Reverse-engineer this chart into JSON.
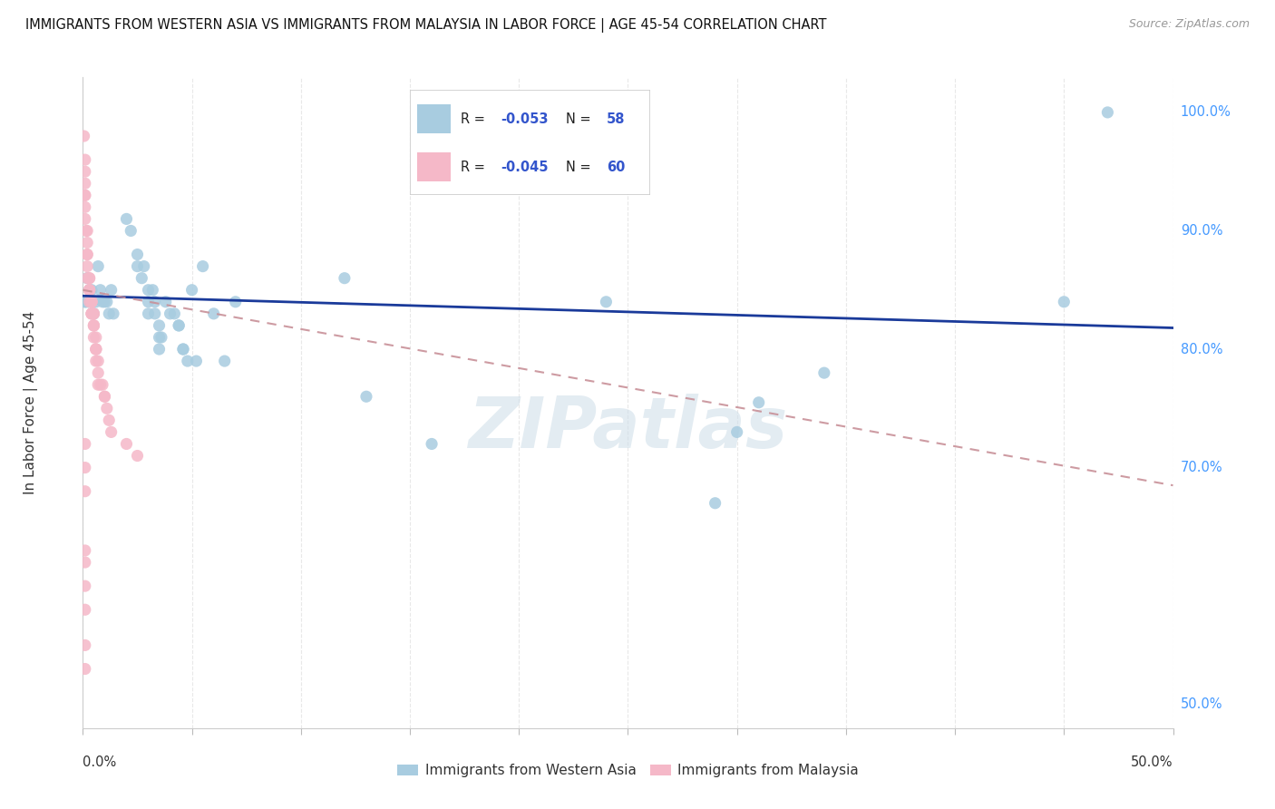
{
  "title": "IMMIGRANTS FROM WESTERN ASIA VS IMMIGRANTS FROM MALAYSIA IN LABOR FORCE | AGE 45-54 CORRELATION CHART",
  "source": "Source: ZipAtlas.com",
  "ylabel": "In Labor Force | Age 45-54",
  "legend_label_blue": "Immigrants from Western Asia",
  "legend_label_pink": "Immigrants from Malaysia",
  "blue_color": "#a8cce0",
  "pink_color": "#f5b8c8",
  "blue_line_color": "#1a3a9a",
  "pink_line_color": "#c89098",
  "r_n_color": "#3355cc",
  "blue_r": "-0.053",
  "blue_n": "58",
  "pink_r": "-0.045",
  "pink_n": "60",
  "blue_line_y0": 0.845,
  "blue_line_y1": 0.818,
  "pink_line_y0": 0.85,
  "pink_line_y1": 0.685,
  "xlim": [
    0.0,
    0.5
  ],
  "ylim": [
    0.48,
    1.03
  ],
  "background_color": "#ffffff",
  "grid_color": "#e8e8e8",
  "watermark": "ZIPatlas",
  "watermark_color": "#ccdde8",
  "blue_scatter_x": [
    0.001,
    0.001,
    0.002,
    0.002,
    0.003,
    0.003,
    0.004,
    0.004,
    0.005,
    0.006,
    0.007,
    0.008,
    0.009,
    0.01,
    0.011,
    0.012,
    0.013,
    0.014,
    0.02,
    0.022,
    0.025,
    0.025,
    0.027,
    0.028,
    0.03,
    0.03,
    0.03,
    0.032,
    0.033,
    0.033,
    0.035,
    0.035,
    0.035,
    0.036,
    0.038,
    0.04,
    0.042,
    0.044,
    0.044,
    0.046,
    0.046,
    0.048,
    0.05,
    0.052,
    0.055,
    0.06,
    0.065,
    0.07,
    0.12,
    0.13,
    0.16,
    0.24,
    0.29,
    0.3,
    0.31,
    0.34,
    0.45,
    0.47
  ],
  "blue_scatter_y": [
    0.84,
    0.84,
    0.86,
    0.84,
    0.85,
    0.84,
    0.84,
    0.85,
    0.83,
    0.84,
    0.87,
    0.85,
    0.84,
    0.84,
    0.84,
    0.83,
    0.85,
    0.83,
    0.91,
    0.9,
    0.88,
    0.87,
    0.86,
    0.87,
    0.85,
    0.84,
    0.83,
    0.85,
    0.84,
    0.83,
    0.82,
    0.81,
    0.8,
    0.81,
    0.84,
    0.83,
    0.83,
    0.82,
    0.82,
    0.8,
    0.8,
    0.79,
    0.85,
    0.79,
    0.87,
    0.83,
    0.79,
    0.84,
    0.86,
    0.76,
    0.72,
    0.84,
    0.67,
    0.73,
    0.755,
    0.78,
    0.84,
    1.0
  ],
  "pink_scatter_x": [
    0.0005,
    0.001,
    0.001,
    0.001,
    0.001,
    0.001,
    0.001,
    0.001,
    0.0015,
    0.002,
    0.002,
    0.002,
    0.002,
    0.002,
    0.002,
    0.003,
    0.003,
    0.003,
    0.003,
    0.003,
    0.003,
    0.003,
    0.004,
    0.004,
    0.004,
    0.004,
    0.004,
    0.004,
    0.005,
    0.005,
    0.005,
    0.005,
    0.005,
    0.005,
    0.006,
    0.006,
    0.006,
    0.006,
    0.006,
    0.007,
    0.007,
    0.007,
    0.008,
    0.009,
    0.01,
    0.01,
    0.011,
    0.012,
    0.013,
    0.02,
    0.025,
    0.001,
    0.001,
    0.001,
    0.001,
    0.001,
    0.001,
    0.001,
    0.001,
    0.001
  ],
  "pink_scatter_y": [
    0.98,
    0.96,
    0.95,
    0.94,
    0.93,
    0.93,
    0.92,
    0.91,
    0.9,
    0.9,
    0.89,
    0.88,
    0.88,
    0.87,
    0.86,
    0.86,
    0.86,
    0.85,
    0.85,
    0.85,
    0.85,
    0.84,
    0.84,
    0.84,
    0.84,
    0.83,
    0.83,
    0.83,
    0.83,
    0.83,
    0.82,
    0.82,
    0.82,
    0.81,
    0.81,
    0.8,
    0.8,
    0.8,
    0.79,
    0.79,
    0.78,
    0.77,
    0.77,
    0.77,
    0.76,
    0.76,
    0.75,
    0.74,
    0.73,
    0.72,
    0.71,
    0.72,
    0.7,
    0.68,
    0.63,
    0.62,
    0.6,
    0.58,
    0.55,
    0.53
  ]
}
